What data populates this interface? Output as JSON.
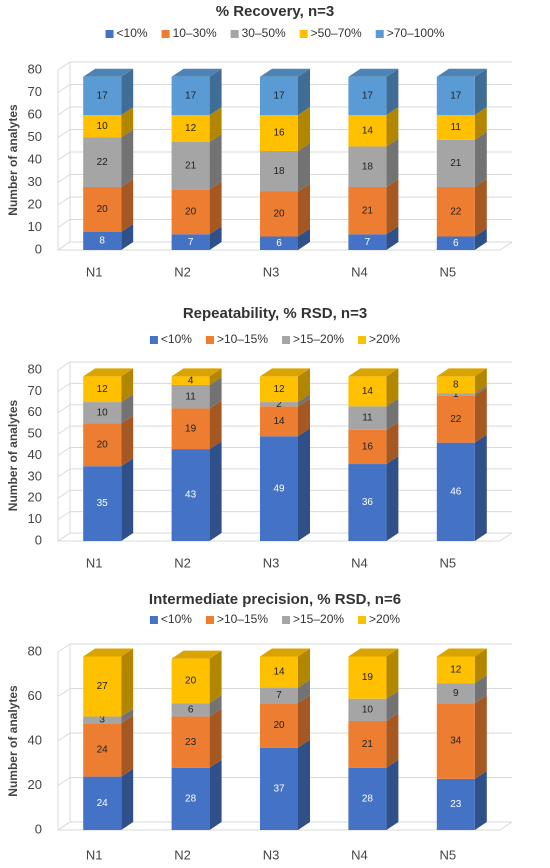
{
  "chart_data": [
    {
      "type": "bar3d-stacked",
      "title": "% Recovery, n=3",
      "y_label": "Number of analytes",
      "categories": [
        "N1",
        "N2",
        "N3",
        "N4",
        "N5"
      ],
      "series": [
        {
          "name": "<10%",
          "color": "#4472c4",
          "values": [
            8,
            7,
            6,
            7,
            6
          ]
        },
        {
          "name": "10–30%",
          "color": "#ed7d31",
          "values": [
            20,
            20,
            20,
            21,
            22
          ]
        },
        {
          "name": "30–50%",
          "color": "#a5a5a5",
          "values": [
            22,
            21,
            18,
            18,
            21
          ]
        },
        {
          "name": ">50–70%",
          "color": "#ffc000",
          "values": [
            10,
            12,
            16,
            14,
            11
          ]
        },
        {
          "name": ">70–100%",
          "color": "#5b9bd5",
          "values": [
            17,
            17,
            17,
            17,
            17
          ]
        }
      ],
      "ylim": [
        0,
        80
      ],
      "yticks": [
        0,
        10,
        20,
        30,
        40,
        50,
        60,
        70,
        80
      ],
      "grid": true
    },
    {
      "type": "bar3d-stacked",
      "title": "Repeatability, % RSD, n=3",
      "y_label": "Number of analytes",
      "categories": [
        "N1",
        "N2",
        "N3",
        "N4",
        "N5"
      ],
      "series": [
        {
          "name": "<10%",
          "color": "#4472c4",
          "values": [
            35,
            43,
            49,
            36,
            46
          ]
        },
        {
          "name": ">10–15%",
          "color": "#ed7d31",
          "values": [
            20,
            19,
            14,
            16,
            22
          ]
        },
        {
          "name": ">15–20%",
          "color": "#a5a5a5",
          "values": [
            10,
            11,
            2,
            11,
            1
          ]
        },
        {
          "name": ">20%",
          "color": "#ffc000",
          "values": [
            12,
            4,
            12,
            14,
            8
          ]
        }
      ],
      "ylim": [
        0,
        80
      ],
      "yticks": [
        0,
        10,
        20,
        30,
        40,
        50,
        60,
        70,
        80
      ],
      "grid": true
    },
    {
      "type": "bar3d-stacked",
      "title": "Intermediate precision, % RSD, n=6",
      "y_label": "Number of analytes",
      "categories": [
        "N1",
        "N2",
        "N3",
        "N4",
        "N5"
      ],
      "series": [
        {
          "name": "<10%",
          "color": "#4472c4",
          "values": [
            24,
            28,
            37,
            28,
            23
          ]
        },
        {
          "name": ">10–15%",
          "color": "#ed7d31",
          "values": [
            24,
            23,
            20,
            21,
            34
          ]
        },
        {
          "name": ">15–20%",
          "color": "#a5a5a5",
          "values": [
            3,
            6,
            7,
            10,
            9
          ]
        },
        {
          "name": ">20%",
          "color": "#ffc000",
          "values": [
            27,
            20,
            14,
            19,
            12
          ]
        }
      ],
      "ylim": [
        0,
        80
      ],
      "yticks": [
        0,
        20,
        40,
        60,
        80
      ],
      "grid": true
    }
  ]
}
